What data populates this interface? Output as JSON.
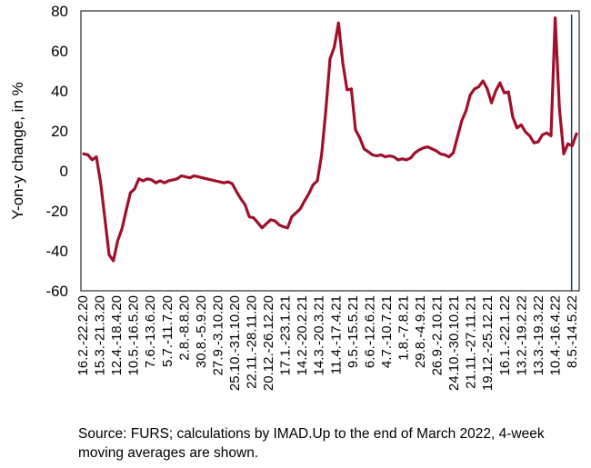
{
  "chart_data": {
    "type": "line",
    "xlabel": "",
    "ylabel": "Y-on-y change, in %",
    "ylim": [
      -60,
      80
    ],
    "yticks": [
      80,
      60,
      40,
      20,
      0,
      -20,
      -40,
      -60
    ],
    "ytick_labels": [
      "80",
      "60",
      "40",
      "20",
      "0",
      "-20",
      "-40",
      "-60"
    ],
    "grid": false,
    "legend": "none",
    "tick_labels": [
      "16.2.-22.2.20",
      "15.3.-21.3.20",
      "12.4.-18.4.20",
      "10.5.-16.5.20",
      "7.6.-13.6.20",
      "5.7.-11.7.20",
      "2.8.-8.8.20",
      "30.8.-5.9.20",
      "27.9.-3.10.20",
      "25.10.-31.10.20",
      "22.11.-28.11.20",
      "20.12.-26.12.20",
      "17.1.-23.1.21",
      "14.2.-20.2.21",
      "14.3.-20.3.21",
      "11.4.-17.4.21",
      "9.5.-15.5.21",
      "6.6.-12.6.21",
      "4.7.-10.7.21",
      "1.8.-7.8.21",
      "29.8.-4.9.21",
      "26.9.-2.10.21",
      "24.10.-30.10.21",
      "21.11.-27.11.21",
      "19.12.-25.12.21",
      "16.1.-22.1.22",
      "13.2.-19.2.22",
      "13.3.-19.3.22",
      "10.4.-16.4.22",
      "8.5.-14.5.22"
    ],
    "values": [
      8.5,
      8,
      5.5,
      7,
      -6,
      -24,
      -42,
      -45,
      -35,
      -29,
      -20,
      -11,
      -9,
      -4,
      -5,
      -4,
      -4.5,
      -6,
      -5,
      -6,
      -5,
      -4.5,
      -4,
      -2.5,
      -3,
      -3.5,
      -2.5,
      -3,
      -3.5,
      -4,
      -4.5,
      -5,
      -5.5,
      -6,
      -5.5,
      -6.5,
      -10.5,
      -14,
      -17,
      -23,
      -23.5,
      -26,
      -28.5,
      -26.5,
      -24.5,
      -25,
      -27,
      -28,
      -28.5,
      -23,
      -21,
      -19,
      -15,
      -11.5,
      -7,
      -5,
      8,
      30,
      56,
      62,
      74,
      54,
      40.5,
      41,
      20.5,
      16.5,
      11,
      9.5,
      8,
      7.5,
      8,
      7,
      7.5,
      7,
      5.5,
      6,
      5.5,
      6.5,
      9,
      10.5,
      11.5,
      12,
      11,
      10,
      8.5,
      8,
      7,
      9,
      17,
      25,
      30,
      38,
      41,
      42,
      45,
      41,
      34,
      40,
      44,
      39,
      39.5,
      27,
      21.5,
      23,
      19.5,
      17.5,
      14,
      14.5,
      18,
      19,
      17.5,
      76.5,
      31,
      8.5,
      13.5,
      12.5,
      18.5
    ],
    "series_color": "#a0102a",
    "marker_line_color": "#1f3864",
    "marker_line_after_point": 115
  },
  "source_note": "Source: FURS; calculations by IMAD.Up to the end of March 2022, 4-week moving averages are shown."
}
